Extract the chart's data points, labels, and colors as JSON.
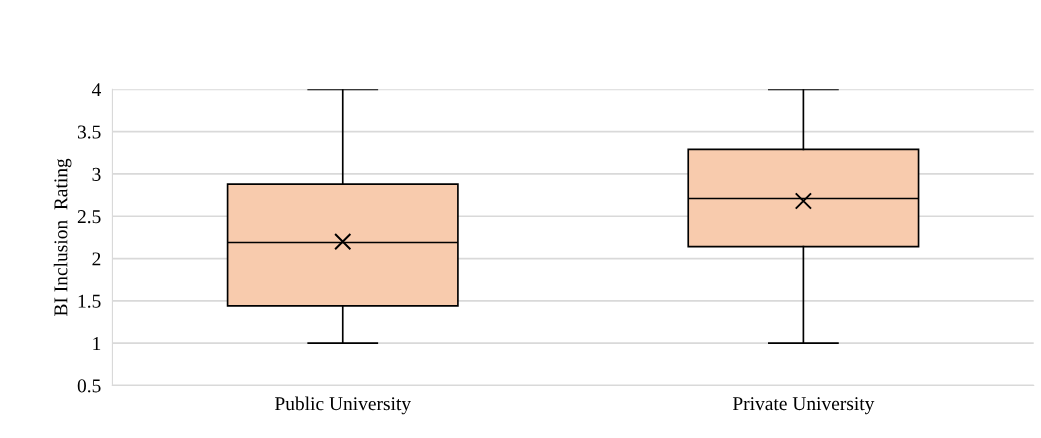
{
  "chart_data": {
    "type": "box",
    "ylabel": "BI Inclusion  Rating",
    "categories": [
      "Public University",
      "Private University"
    ],
    "boxes": [
      {
        "low": 1,
        "q1": 1.44,
        "median": 2.19,
        "q3": 2.88,
        "high": 4,
        "mean": 2.2
      },
      {
        "low": 1,
        "q1": 2.14,
        "median": 2.71,
        "q3": 3.29,
        "high": 4,
        "mean": 2.68
      }
    ],
    "color": "#f8cbad",
    "ylim": [
      0.5,
      4
    ],
    "yticks": [
      0.5,
      1,
      1.5,
      2,
      2.5,
      3,
      3.5,
      4
    ],
    "grid": "y",
    "marker": "cross"
  }
}
